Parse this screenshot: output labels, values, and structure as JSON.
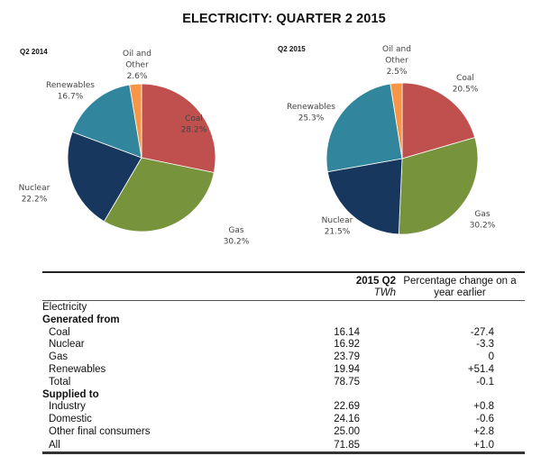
{
  "title": "ELECTRICITY: QUARTER 2 2015",
  "chart_data": [
    {
      "type": "pie",
      "title": "Q2 2014",
      "slices": [
        {
          "label_lines": [
            "Coal"
          ],
          "value_label": "28.2%",
          "value": 28.2,
          "color": "#c0504d"
        },
        {
          "label_lines": [
            "Gas"
          ],
          "value_label": "30.2%",
          "value": 30.2,
          "color": "#77933c"
        },
        {
          "label_lines": [
            "Nuclear"
          ],
          "value_label": "22.2%",
          "value": 22.2,
          "color": "#17375e"
        },
        {
          "label_lines": [
            "Renewables"
          ],
          "value_label": "16.7%",
          "value": 16.7,
          "color": "#31859c"
        },
        {
          "label_lines": [
            "Oil and",
            "Other"
          ],
          "value_label": "2.6%",
          "value": 2.6,
          "color": "#f79646"
        }
      ]
    },
    {
      "type": "pie",
      "title": "Q2 2015",
      "slices": [
        {
          "label_lines": [
            "Coal"
          ],
          "value_label": "20.5%",
          "value": 20.5,
          "color": "#c0504d"
        },
        {
          "label_lines": [
            "Gas"
          ],
          "value_label": "30.2%",
          "value": 30.2,
          "color": "#77933c"
        },
        {
          "label_lines": [
            "Nuclear"
          ],
          "value_label": "21.5%",
          "value": 21.5,
          "color": "#17375e"
        },
        {
          "label_lines": [
            "Renewables"
          ],
          "value_label": "25.3%",
          "value": 25.3,
          "color": "#31859c"
        },
        {
          "label_lines": [
            "Oil and",
            "Other"
          ],
          "value_label": "2.5%",
          "value": 2.5,
          "color": "#f79646"
        }
      ]
    }
  ],
  "table": {
    "header": {
      "col1_title": "2015 Q2",
      "col1_unit": "TWh",
      "col2_line1": "Percentage change on a",
      "col2_line2": "year earlier"
    },
    "rows": [
      {
        "label": "Electricity",
        "style": "plain",
        "value": "",
        "change": ""
      },
      {
        "label": "Generated from",
        "style": "bold",
        "value": "",
        "change": ""
      },
      {
        "label": "Coal",
        "style": "indent",
        "value": "16.14",
        "change": "-27.4"
      },
      {
        "label": "Nuclear",
        "style": "indent",
        "value": "16.92",
        "change": "-3.3"
      },
      {
        "label": "Gas",
        "style": "indent",
        "value": "23.79",
        "change": "0"
      },
      {
        "label": "Renewables",
        "style": "indent",
        "value": "19.94",
        "change": "+51.4"
      },
      {
        "label": "Total",
        "style": "indent",
        "value": "78.75",
        "change": "-0.1"
      },
      {
        "label": "Supplied to",
        "style": "bold",
        "value": "",
        "change": ""
      },
      {
        "label": "Industry",
        "style": "indent",
        "value": "22.69",
        "change": "+0.8"
      },
      {
        "label": "Domestic",
        "style": "indent",
        "value": "24.16",
        "change": "-0.6"
      },
      {
        "label": "Other final consumers",
        "style": "indent",
        "value": "25.00",
        "change": "+2.8"
      },
      {
        "label": "All",
        "style": "indent last",
        "value": "71.85",
        "change": "+1.0"
      }
    ]
  }
}
